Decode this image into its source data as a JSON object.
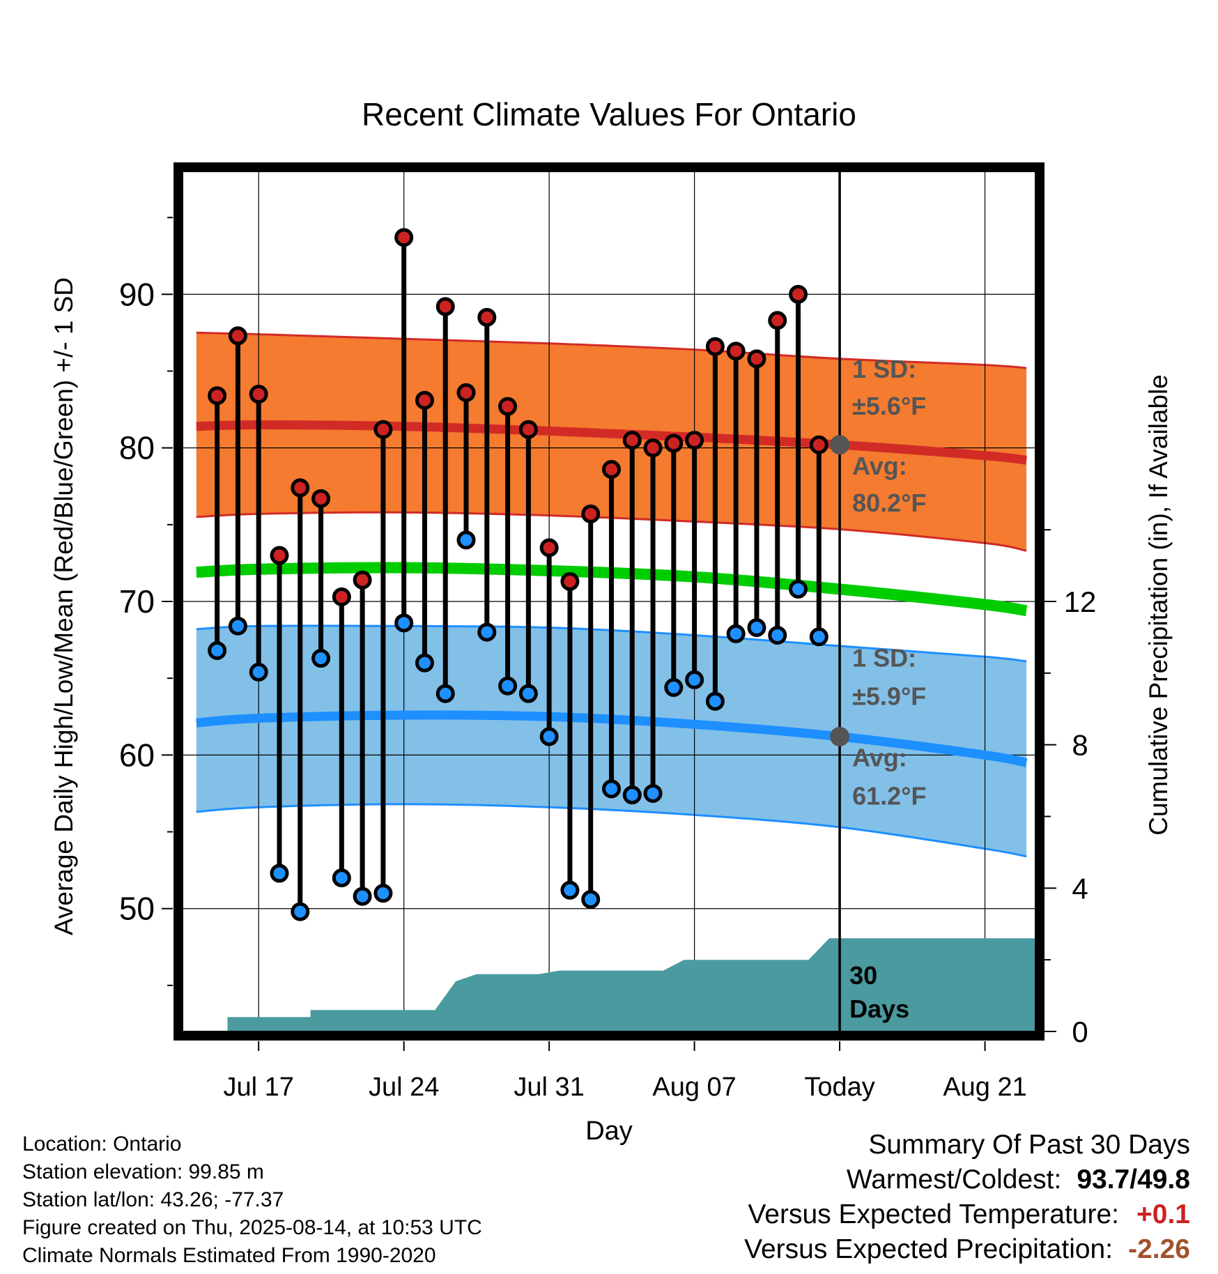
{
  "chart_data": {
    "type": "line",
    "title": "Recent Climate Values For Ontario",
    "xlabel": "Day",
    "ylabel": "Average Daily High/Low/Mean (Red/Blue/Green) +/- 1 SD",
    "ylabel_right": "Cumulative Precipitation (in), If Available",
    "ylim": [
      42,
      98
    ],
    "y2lim": [
      0,
      24
    ],
    "yticks": [
      50,
      60,
      70,
      80,
      90
    ],
    "y2ticks": [
      0,
      4,
      8,
      12
    ],
    "xlim": [
      -3.7,
      37.5
    ],
    "xticks": [
      {
        "day": 0,
        "label": "Jul 17"
      },
      {
        "day": 7,
        "label": "Jul 24"
      },
      {
        "day": 14,
        "label": "Jul 31"
      },
      {
        "day": 21,
        "label": "Aug 07"
      },
      {
        "day": 28,
        "label": "Today"
      },
      {
        "day": 35,
        "label": "Aug 21"
      }
    ],
    "grid": true,
    "today_day": 28,
    "days_label": "30 Days",
    "normals": {
      "x": [
        -3,
        0,
        7,
        14,
        21,
        28,
        35,
        37
      ],
      "high_avg": [
        81.4,
        81.5,
        81.4,
        81.1,
        80.7,
        80.2,
        79.5,
        79.2
      ],
      "high_upper": [
        87.5,
        87.4,
        87.1,
        86.8,
        86.4,
        85.8,
        85.4,
        85.2
      ],
      "high_lower": [
        75.5,
        75.7,
        75.8,
        75.6,
        75.2,
        74.7,
        73.8,
        73.3
      ],
      "mean_avg": [
        71.9,
        72.1,
        72.2,
        72.0,
        71.6,
        70.8,
        69.8,
        69.4
      ],
      "low_avg": [
        62.1,
        62.4,
        62.6,
        62.5,
        62.0,
        61.2,
        60.0,
        59.5
      ],
      "low_upper": [
        68.2,
        68.4,
        68.4,
        68.3,
        67.8,
        67.1,
        66.4,
        66.1
      ],
      "low_lower": [
        56.3,
        56.6,
        56.8,
        56.6,
        56.1,
        55.3,
        53.9,
        53.4
      ]
    },
    "series": [
      {
        "name": "High",
        "color": "#cc2222",
        "x": [
          -2,
          -1,
          0,
          1,
          2,
          3,
          4,
          5,
          6,
          7,
          8,
          9,
          10,
          11,
          12,
          13,
          14,
          15,
          16,
          17,
          18,
          19,
          20,
          21,
          22,
          23,
          24,
          25,
          26,
          27
        ],
        "values": [
          83.4,
          87.3,
          83.5,
          73.0,
          77.4,
          76.7,
          70.3,
          71.4,
          81.2,
          93.7,
          83.1,
          89.2,
          83.6,
          88.5,
          82.7,
          81.2,
          73.5,
          71.3,
          75.7,
          78.6,
          80.5,
          80.0,
          80.3,
          80.5,
          86.6,
          86.3,
          85.8,
          88.3,
          90.0,
          80.2
        ]
      },
      {
        "name": "Low",
        "color": "#1e90ff",
        "x": [
          -2,
          -1,
          0,
          1,
          2,
          3,
          4,
          5,
          6,
          7,
          8,
          9,
          10,
          11,
          12,
          13,
          14,
          15,
          16,
          17,
          18,
          19,
          20,
          21,
          22,
          23,
          24,
          25,
          26,
          27
        ],
        "values": [
          66.8,
          68.4,
          65.4,
          52.3,
          49.8,
          66.3,
          52.0,
          50.8,
          51.0,
          68.6,
          66.0,
          64.0,
          74.0,
          68.0,
          64.5,
          64.0,
          61.2,
          51.2,
          50.6,
          57.8,
          57.4,
          57.5,
          64.4,
          64.9,
          63.5,
          67.9,
          68.3,
          67.8,
          70.8,
          67.7
        ]
      }
    ],
    "precip": {
      "x": [
        -1.5,
        -1.5,
        2.5,
        2.5,
        6.5,
        6.5,
        7.5,
        8.5,
        9.5,
        10.5,
        11.5,
        13.5,
        14.5,
        16.5,
        17.5,
        19.5,
        20.5,
        22.5,
        23.5,
        25.5,
        26.5,
        27.5,
        28.5,
        37.5
      ],
      "values": [
        0.2,
        0.4,
        0.4,
        0.6,
        0.6,
        0.6,
        0.6,
        0.6,
        1.4,
        1.6,
        1.6,
        1.6,
        1.7,
        1.7,
        1.7,
        1.7,
        2.0,
        2.0,
        2.0,
        2.0,
        2.0,
        2.6,
        2.6,
        2.6
      ]
    },
    "annotations": [
      {
        "id": "high",
        "sd_label": "1 SD:",
        "sd_value": "±5.6°F",
        "avg_label": "Avg:",
        "avg_value": "80.2°F"
      },
      {
        "id": "low",
        "sd_label": "1 SD:",
        "sd_value": "±5.9°F",
        "avg_label": "Avg:",
        "avg_value": "61.2°F"
      }
    ]
  },
  "info": {
    "location": "Location: Ontario",
    "elevation": "Station elevation: 99.85 m",
    "latlon": "Station lat/lon: 43.26; -77.37",
    "created": "Figure created on Thu, 2025-08-14, at 10:53 UTC",
    "normals": "Climate Normals Estimated From 1990-2020"
  },
  "summary": {
    "title": "Summary Of Past 30 Days",
    "warm_label": "Warmest/Coldest:",
    "warm_value": "93.7/49.8",
    "temp_label": "Versus Expected Temperature:",
    "temp_value": "+0.1",
    "temp_color": "#cc2222",
    "precip_label": "Versus Expected Precipitation:",
    "precip_value": "-2.26",
    "precip_color": "#a0522d"
  },
  "colors": {
    "high_band": "#f47b30",
    "high_line": "#d22b26",
    "mean_line": "#00cc00",
    "low_band": "#82c0e8",
    "low_line": "#1e8fff",
    "precip_fill": "#4a9aa0",
    "annotation_text": "#555555"
  }
}
